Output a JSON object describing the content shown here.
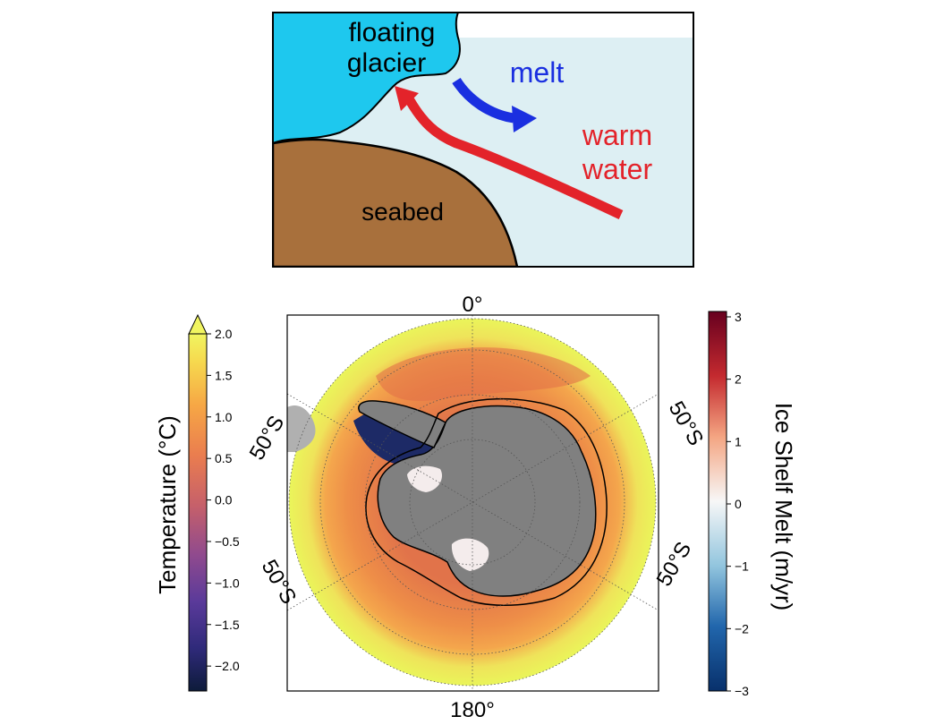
{
  "schematic": {
    "glacier_label_line1": "floating",
    "glacier_label_line2": "glacier",
    "melt_label": "melt",
    "warm_label_line1": "warm",
    "warm_label_line2": "water",
    "seabed_label": "seabed",
    "colors": {
      "glacier": "#1ec8ee",
      "water": "#ddeff3",
      "seabed": "#a8703c",
      "melt_arrow": "#1a2fe0",
      "warm_arrow": "#e3232a"
    }
  },
  "map": {
    "top_label": "0°",
    "bottom_label": "180°",
    "lat_labels": [
      "50°S",
      "50°S",
      "50°S",
      "50°S"
    ],
    "colors": {
      "ocean_outer": "#eaf55a",
      "ocean_mid": "#f39a48",
      "ocean_inner": "#e57a48",
      "land": "#808080",
      "ice_shelf": "#f4ecec"
    }
  },
  "temperature_colorbar": {
    "label": "Temperature (°C)",
    "ticks": [
      "2.0",
      "1.5",
      "1.0",
      "0.5",
      "0.0",
      "−0.5",
      "−1.0",
      "−1.5",
      "−2.0"
    ],
    "tick_values": [
      2.0,
      1.5,
      1.0,
      0.5,
      0.0,
      -0.5,
      -1.0,
      -1.5,
      -2.0
    ],
    "range": [
      -2.3,
      2.0
    ]
  },
  "melt_colorbar": {
    "label": "Ice Shelf Melt (m/yr)",
    "ticks": [
      "3",
      "2",
      "1",
      "0",
      "−1",
      "−2",
      "−3"
    ],
    "tick_values": [
      3,
      2,
      1,
      0,
      -1,
      -2,
      -3
    ],
    "range": [
      -3,
      3
    ]
  }
}
